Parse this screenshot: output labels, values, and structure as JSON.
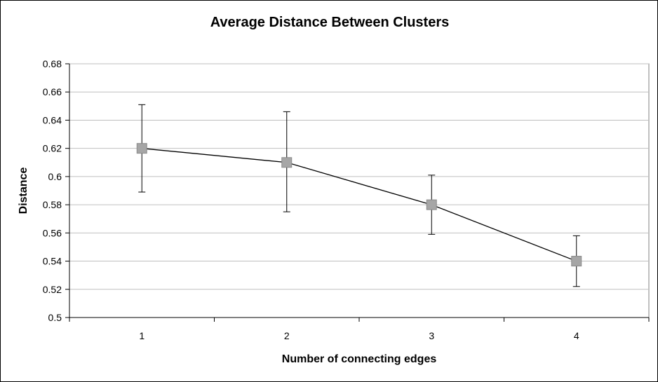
{
  "chart_data": {
    "type": "line",
    "title": "Average Distance Between Clusters",
    "xlabel": "Number of connecting edges",
    "ylabel": "Distance",
    "x": [
      1,
      2,
      3,
      4
    ],
    "series": [
      {
        "values": [
          0.62,
          0.61,
          0.58,
          0.54
        ],
        "error_high": [
          0.651,
          0.646,
          0.601,
          0.558
        ],
        "error_low": [
          0.589,
          0.575,
          0.559,
          0.522
        ],
        "color": "#000000",
        "marker_color": "#a6a6a6"
      }
    ],
    "ylim": [
      0.5,
      0.68
    ],
    "y_ticks": [
      "0.68",
      "0.66",
      "0.64",
      "0.62",
      "0.6",
      "0.58",
      "0.56",
      "0.54",
      "0.52",
      "0.5"
    ],
    "x_ticks": [
      "1",
      "2",
      "3",
      "4"
    ],
    "grid": true,
    "legend": "none"
  }
}
